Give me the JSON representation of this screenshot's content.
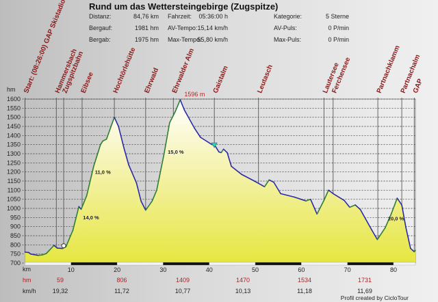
{
  "header": {
    "title": "Rund um das Wettersteingebirge (Zugspitze)",
    "stats": [
      [
        {
          "label": "Distanz:",
          "value": "84,76 km"
        },
        {
          "label": "Fahrzeit:",
          "value": "05:36:00 h"
        },
        {
          "label": "Kategorie:",
          "value": "5 Sterne"
        }
      ],
      [
        {
          "label": "Bergauf:",
          "value": "1981 hm"
        },
        {
          "label": "AV-Tempo:",
          "value": "15,14 km/h"
        },
        {
          "label": "AV-Puls:",
          "value": "0 P/min"
        }
      ],
      [
        {
          "label": "Bergab:",
          "value": "1975 hm"
        },
        {
          "label": "Max-Tempo:",
          "value": "55,80 km/h"
        },
        {
          "label": "Max-Puls:",
          "value": "0 P/min"
        }
      ]
    ]
  },
  "chart_data": {
    "type": "area",
    "ylabel": "hm",
    "xlabel": "km",
    "xlim": [
      0,
      84.76
    ],
    "ylim": [
      700,
      1600
    ],
    "yticks": [
      700,
      750,
      800,
      850,
      900,
      950,
      1000,
      1050,
      1100,
      1150,
      1200,
      1250,
      1300,
      1350,
      1400,
      1450,
      1500,
      1550,
      1600
    ],
    "xticks": [
      10,
      20,
      30,
      40,
      50,
      60,
      70,
      80
    ],
    "grid": true,
    "line_color_up": "#2e7d32",
    "line_color_down": "#2a2aa8",
    "fill_color": "#e6e640",
    "max_label": "1596 m",
    "max_point": {
      "km": 33.7,
      "elev": 1596
    },
    "profile": [
      [
        0,
        760
      ],
      [
        0.8,
        758
      ],
      [
        1.2,
        750
      ],
      [
        2,
        746
      ],
      [
        2.9,
        742
      ],
      [
        3.8,
        745
      ],
      [
        4.6,
        752
      ],
      [
        5.3,
        770
      ],
      [
        6.3,
        797
      ],
      [
        7,
        782
      ],
      [
        8.2,
        780
      ],
      [
        8.9,
        790
      ],
      [
        10.4,
        880
      ],
      [
        11.7,
        1010
      ],
      [
        12.2,
        995
      ],
      [
        13.4,
        1070
      ],
      [
        14.9,
        1230
      ],
      [
        16.4,
        1350
      ],
      [
        16.9,
        1370
      ],
      [
        17.7,
        1380
      ],
      [
        19.4,
        1500
      ],
      [
        20.3,
        1450
      ],
      [
        21.5,
        1330
      ],
      [
        22.5,
        1240
      ],
      [
        24.2,
        1140
      ],
      [
        25.2,
        1040
      ],
      [
        26.2,
        990
      ],
      [
        27.6,
        1040
      ],
      [
        28.6,
        1100
      ],
      [
        30.2,
        1300
      ],
      [
        31.4,
        1470
      ],
      [
        32.6,
        1530
      ],
      [
        33.7,
        1596
      ],
      [
        34.6,
        1540
      ],
      [
        36.8,
        1440
      ],
      [
        38.1,
        1390
      ],
      [
        40.6,
        1350
      ],
      [
        41.1,
        1350
      ],
      [
        42.1,
        1310
      ],
      [
        42.6,
        1306
      ],
      [
        43.1,
        1325
      ],
      [
        43.9,
        1306
      ],
      [
        44.8,
        1231
      ],
      [
        47.0,
        1187
      ],
      [
        49.8,
        1150
      ],
      [
        52.0,
        1119
      ],
      [
        53.0,
        1156
      ],
      [
        54.0,
        1144
      ],
      [
        55.5,
        1081
      ],
      [
        58.5,
        1062
      ],
      [
        61.0,
        1041
      ],
      [
        62.0,
        1050
      ],
      [
        63.4,
        969
      ],
      [
        64.9,
        1044
      ],
      [
        65.9,
        1100
      ],
      [
        66.9,
        1081
      ],
      [
        69.3,
        1044
      ],
      [
        70.5,
        1006
      ],
      [
        71.7,
        1019
      ],
      [
        72.8,
        994
      ],
      [
        75.3,
        881
      ],
      [
        76.5,
        829
      ],
      [
        78.2,
        894
      ],
      [
        79.5,
        969
      ],
      [
        80.8,
        1056
      ],
      [
        81.8,
        1019
      ],
      [
        82.7,
        894
      ],
      [
        83.7,
        781
      ],
      [
        84.5,
        762
      ],
      [
        84.76,
        770
      ]
    ],
    "waypoints": [
      {
        "km": 0,
        "label": "Start: (08:26:00) GAP Skistadion"
      },
      {
        "km": 6.8,
        "label": "Hammersbach"
      },
      {
        "km": 8.4,
        "label": "Zugspitzbahn"
      },
      {
        "km": 12.4,
        "label": "Eibsee"
      },
      {
        "km": 19.4,
        "label": "Hochtörlehütte"
      },
      {
        "km": 26.2,
        "label": "Ehrwald"
      },
      {
        "km": 32.2,
        "label": "Ehrwalder Alm"
      },
      {
        "km": 41.1,
        "label": "Gaistalm"
      },
      {
        "km": 50.7,
        "label": "Leutasch"
      },
      {
        "km": 64.9,
        "label": "Lautersee"
      },
      {
        "km": 66.9,
        "label": "Ferchensee"
      },
      {
        "km": 76.6,
        "label": "Partnachklamm"
      },
      {
        "km": 81.8,
        "label": "Partnachalm"
      },
      {
        "km": 84.5,
        "label": "GAP"
      }
    ],
    "grade_labels": [
      {
        "km": 12.6,
        "elev": 940,
        "text": "14,0 %"
      },
      {
        "km": 15.2,
        "elev": 1190,
        "text": "11,0 %"
      },
      {
        "km": 31.0,
        "elev": 1300,
        "text": "15,0 %"
      },
      {
        "km": 78.8,
        "elev": 935,
        "text": "20,0 %"
      }
    ]
  },
  "footer": {
    "km_label": "km",
    "hm_label": "hm",
    "kmh_label": "km/h",
    "hm_values": [
      "59",
      "806",
      "1409",
      "1470",
      "1534",
      "1731"
    ],
    "kmh_values": [
      "19,32",
      "11,72",
      "10,77",
      "10,13",
      "11,18",
      "11,69"
    ],
    "credit": "Profil created by CicloTour"
  }
}
